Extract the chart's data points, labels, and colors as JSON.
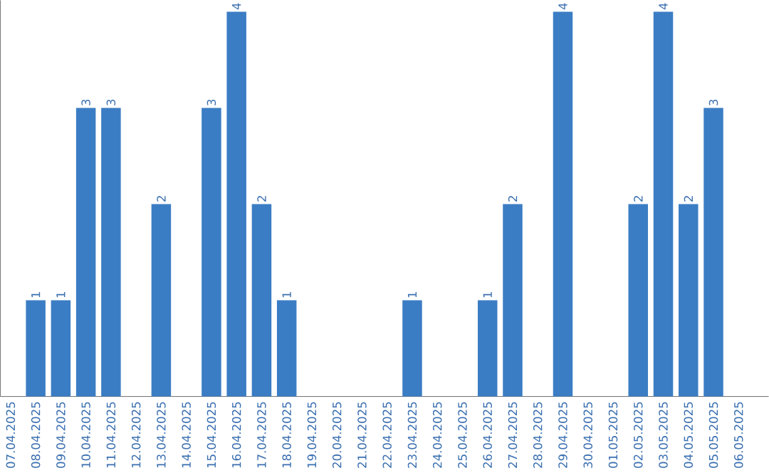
{
  "chart_data": {
    "type": "bar",
    "color": "#3b7dc4",
    "categories": [
      "07.04.2025",
      "08.04.2025",
      "09.04.2025",
      "10.04.2025",
      "11.04.2025",
      "12.04.2025",
      "13.04.2025",
      "14.04.2025",
      "15.04.2025",
      "16.04.2025",
      "17.04.2025",
      "18.04.2025",
      "19.04.2025",
      "20.04.2025",
      "21.04.2025",
      "22.04.2025",
      "23.04.2025",
      "24.04.2025",
      "25.04.2025",
      "26.04.2025",
      "27.04.2025",
      "28.04.2025",
      "29.04.2025",
      "30.04.2025",
      "01.05.2025",
      "02.05.2025",
      "03.05.2025",
      "04.05.2025",
      "05.05.2025",
      "06.05.2025"
    ],
    "values": [
      0,
      1,
      1,
      3,
      3,
      0,
      2,
      0,
      3,
      4,
      2,
      1,
      0,
      0,
      0,
      0,
      1,
      0,
      0,
      1,
      2,
      0,
      4,
      0,
      0,
      2,
      4,
      2,
      3,
      0
    ],
    "value_labels": [
      null,
      "1",
      "1",
      "3",
      "3",
      null,
      "2",
      null,
      "3",
      "4",
      "2",
      "1",
      null,
      null,
      null,
      null,
      "1",
      null,
      null,
      "1",
      "2",
      null,
      "4",
      null,
      null,
      "2",
      "4",
      "2",
      "3",
      null
    ],
    "tick_labels": "x"
  }
}
